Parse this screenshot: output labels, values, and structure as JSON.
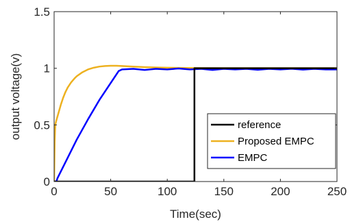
{
  "chart_data": {
    "type": "line",
    "title": "",
    "xlabel": "Time(sec)",
    "ylabel": "output voltage(v)",
    "xlim": [
      0,
      250
    ],
    "ylim": [
      0,
      1.5
    ],
    "xticks": [
      0,
      50,
      100,
      150,
      200,
      250
    ],
    "yticks": [
      0,
      0.5,
      1,
      1.5
    ],
    "xtick_labels": [
      "0",
      "50",
      "100",
      "150",
      "200",
      "250"
    ],
    "ytick_labels": [
      "0",
      "0.5",
      "1",
      "1.5"
    ],
    "grid": false,
    "legend_position": "bottom-right",
    "series": [
      {
        "name": "reference",
        "color": "#000000",
        "x": [
          0,
          124,
          124,
          250
        ],
        "y": [
          0,
          0,
          1,
          1
        ]
      },
      {
        "name": "Proposed EMPC",
        "color": "#EDB120",
        "x": [
          0,
          0.5,
          1,
          2,
          4,
          6,
          8,
          10,
          12,
          15,
          18,
          20,
          25,
          30,
          35,
          40,
          45,
          50,
          55,
          60,
          70,
          80,
          90,
          100,
          110,
          125,
          150,
          175,
          200,
          225,
          250
        ],
        "y": [
          0,
          0.35,
          0.5,
          0.54,
          0.61,
          0.68,
          0.74,
          0.79,
          0.83,
          0.875,
          0.91,
          0.93,
          0.965,
          0.99,
          1.005,
          1.015,
          1.02,
          1.022,
          1.022,
          1.02,
          1.015,
          1.01,
          1.007,
          1.005,
          1.003,
          1.002,
          1.001,
          1.001,
          1.001,
          1.001,
          1.001
        ]
      },
      {
        "name": "EMPC",
        "color": "#0000FF",
        "x": [
          0,
          2,
          3,
          5,
          10,
          20,
          30,
          40,
          50,
          57,
          60,
          70,
          80,
          90,
          100,
          110,
          120,
          130,
          140,
          150,
          160,
          170,
          180,
          190,
          200,
          210,
          220,
          230,
          240,
          250
        ],
        "y": [
          0,
          0,
          0.03,
          0.07,
          0.17,
          0.37,
          0.55,
          0.72,
          0.87,
          0.975,
          0.99,
          0.995,
          0.985,
          0.995,
          0.99,
          0.998,
          0.99,
          0.995,
          0.985,
          0.995,
          0.99,
          0.995,
          0.987,
          0.995,
          0.99,
          0.996,
          0.988,
          0.995,
          0.99,
          0.99
        ]
      }
    ]
  }
}
